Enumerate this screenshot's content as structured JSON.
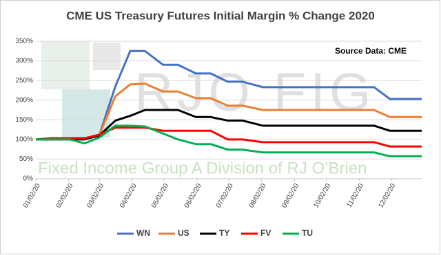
{
  "chart_data": {
    "type": "line",
    "title": "CME US Treasury Futures Initial Margin % Change 2020",
    "annotation": "Source Data: CME",
    "watermark": {
      "logo": "RJO FIG",
      "tagline": "Fixed Income Group A Division of RJ O’Brien"
    },
    "x": [
      "01/02/20",
      "01/17/20",
      "02/03/20",
      "02/17/20",
      "03/02/20",
      "03/17/20",
      "03/31/20",
      "04/14/20",
      "05/01/20",
      "05/15/20",
      "06/01/20",
      "06/15/20",
      "07/01/20",
      "07/15/20",
      "08/03/20",
      "11/16/20",
      "12/01/20",
      "12/31/20"
    ],
    "series": [
      {
        "name": "WN",
        "color": "#4472c4",
        "values": [
          100,
          103,
          103,
          103,
          112,
          235,
          325,
          325,
          290,
          290,
          268,
          268,
          247,
          247,
          233,
          233,
          203,
          203
        ]
      },
      {
        "name": "US",
        "color": "#ed7d31",
        "values": [
          100,
          103,
          103,
          103,
          112,
          210,
          240,
          242,
          222,
          222,
          205,
          205,
          186,
          186,
          175,
          175,
          157,
          157
        ]
      },
      {
        "name": "TY",
        "color": "#000000",
        "values": [
          100,
          100,
          100,
          100,
          110,
          148,
          160,
          175,
          175,
          175,
          157,
          157,
          148,
          148,
          135,
          135,
          122,
          122
        ]
      },
      {
        "name": "FV",
        "color": "#ff0000",
        "values": [
          100,
          103,
          103,
          103,
          112,
          130,
          130,
          130,
          122,
          122,
          122,
          122,
          100,
          100,
          93,
          93,
          82,
          82
        ]
      },
      {
        "name": "TU",
        "color": "#00b050",
        "values": [
          100,
          100,
          100,
          90,
          105,
          135,
          135,
          133,
          115,
          100,
          88,
          88,
          74,
          74,
          67,
          67,
          57,
          57
        ]
      }
    ],
    "xlim": [
      "01/02/20",
      "12/31/20"
    ],
    "xticks": [
      "01/02/20",
      "02/02/20",
      "03/02/20",
      "04/02/20",
      "05/02/20",
      "06/02/20",
      "07/02/20",
      "08/02/20",
      "09/02/20",
      "10/02/20",
      "11/02/20",
      "12/02/20"
    ],
    "ylim": [
      0,
      350
    ],
    "yticks": [
      {
        "value": 0,
        "label": "0%"
      },
      {
        "value": 50,
        "label": "50%"
      },
      {
        "value": 100,
        "label": "100%"
      },
      {
        "value": 150,
        "label": "150%"
      },
      {
        "value": 200,
        "label": "200%"
      },
      {
        "value": 250,
        "label": "250%"
      },
      {
        "value": 300,
        "label": "300%"
      },
      {
        "value": 350,
        "label": "350%"
      }
    ],
    "grid": true,
    "legend": "bottom"
  }
}
